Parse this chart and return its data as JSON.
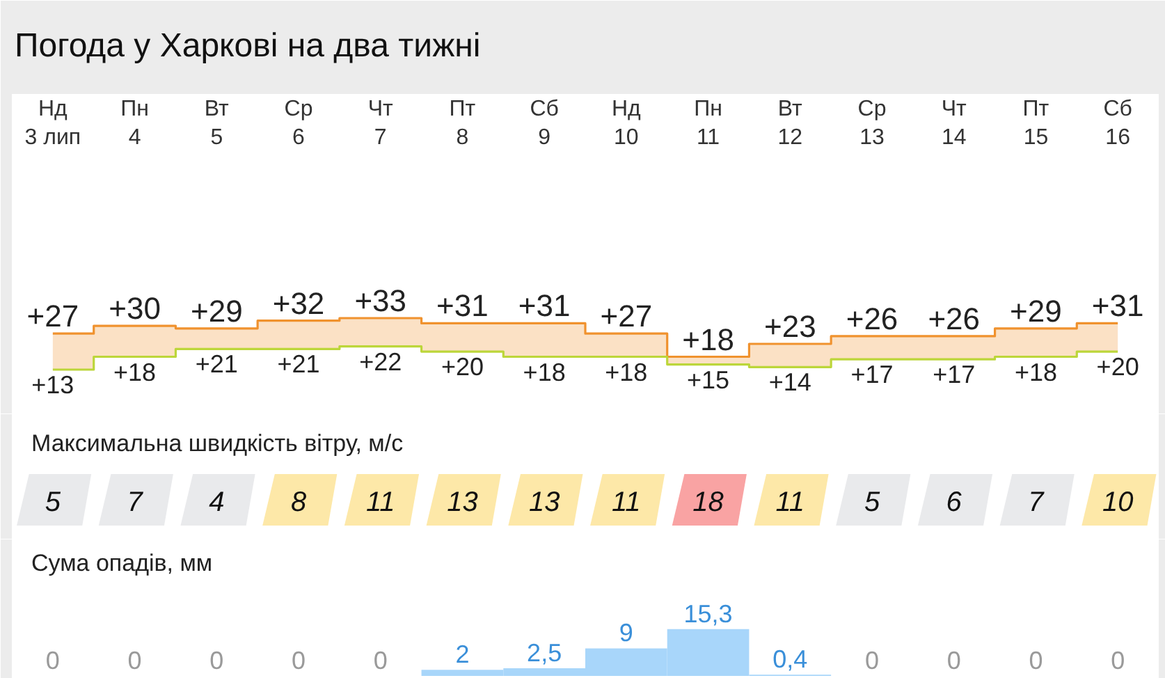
{
  "chart_data": [
    {
      "type": "step",
      "title": "Погода у Харкові на два тижні",
      "categories": [
        "Нд\n3 лип",
        "Пн\n4",
        "Вт\n5",
        "Ср\n6",
        "Чт\n7",
        "Пт\n8",
        "Сб\n9",
        "Нд\n10",
        "Пн\n11",
        "Вт\n12",
        "Ср\n13",
        "Чт\n14",
        "Пт\n15",
        "Сб\n16"
      ],
      "tick_labels": "x",
      "series": [
        {
          "color": "#f0922e",
          "values": [
            27,
            30,
            29,
            32,
            33,
            31,
            31,
            27,
            18,
            23,
            26,
            26,
            29,
            31
          ],
          "value_labels": [
            "+27",
            "+30",
            "+29",
            "+32",
            "+33",
            "+31",
            "+31",
            "+27",
            "+18",
            "+23",
            "+26",
            "+26",
            "+29",
            "+31"
          ],
          "lower": [
            13,
            18,
            21,
            21,
            22,
            20,
            18,
            18,
            15,
            14,
            17,
            17,
            18,
            20
          ],
          "upper": [
            27,
            30,
            29,
            32,
            33,
            31,
            31,
            27,
            18,
            23,
            26,
            26,
            29,
            31
          ]
        },
        {
          "color": "#bcd63a",
          "values": [
            13,
            18,
            21,
            21,
            22,
            20,
            18,
            18,
            15,
            14,
            17,
            17,
            18,
            20
          ],
          "value_labels": [
            "+13",
            "+18",
            "+21",
            "+21",
            "+22",
            "+20",
            "+18",
            "+18",
            "+15",
            "+14",
            "+17",
            "+17",
            "+18",
            "+20"
          ]
        }
      ]
    },
    {
      "type": "other",
      "title": "Максимальна швидкість вітру, м/с",
      "values": [
        5,
        7,
        4,
        8,
        11,
        13,
        13,
        11,
        18,
        11,
        5,
        6,
        7,
        10
      ],
      "colors": [
        "#e9eaec",
        "#e9eaec",
        "#e9eaec",
        "#fde8a8",
        "#fde8a8",
        "#fde8a8",
        "#fde8a8",
        "#fde8a8",
        "#f9a3a3",
        "#fde8a8",
        "#e9eaec",
        "#e9eaec",
        "#e9eaec",
        "#fde8a8"
      ],
      "data_labels": true
    },
    {
      "type": "bar",
      "title": "Сума опадів, мм",
      "categories": [
        null,
        null,
        null,
        null,
        null,
        null,
        null,
        null,
        null,
        null,
        null,
        null,
        null,
        null
      ],
      "series": [
        {
          "color": "#a8d6fa",
          "values": [
            0,
            0,
            0,
            0,
            0,
            2,
            2.5,
            9,
            15.3,
            0.4,
            0,
            0,
            0,
            0
          ],
          "value_labels": [
            "0",
            "0",
            "0",
            "0",
            "0",
            "2",
            "2,5",
            "9",
            "15,3",
            "0,4",
            "0",
            "0",
            "0",
            "0"
          ]
        }
      ]
    }
  ]
}
